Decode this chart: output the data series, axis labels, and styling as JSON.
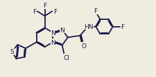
{
  "background_color": "#f0ece0",
  "bond_color": "#1a1a4a",
  "atom_bg": "#f0ece0",
  "lw": 1.3,
  "fs": 6.5,
  "dbo": 0.055,
  "xlim": [
    0,
    10
  ],
  "ylim": [
    0,
    5
  ],
  "figsize": [
    2.25,
    1.13
  ],
  "dpi": 100
}
